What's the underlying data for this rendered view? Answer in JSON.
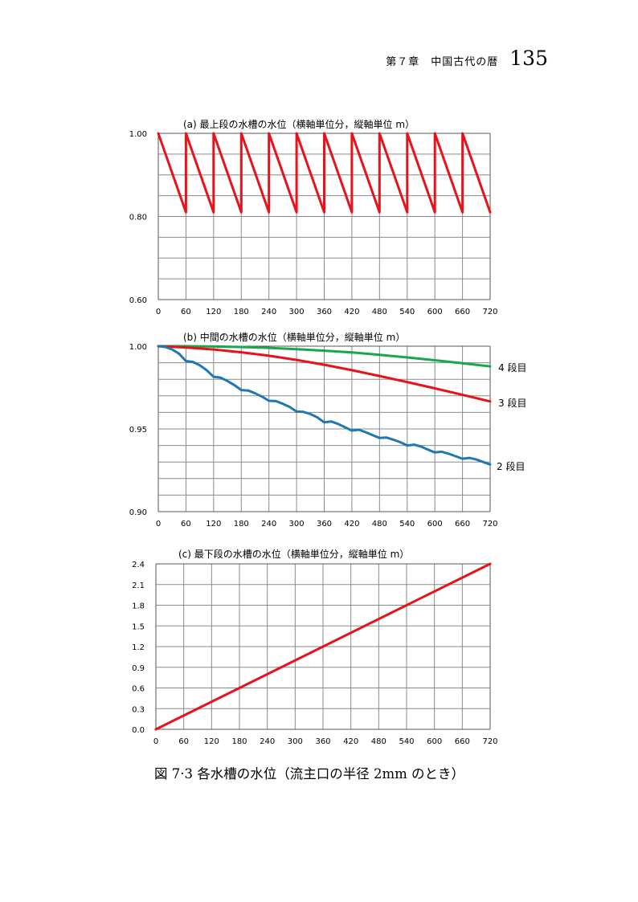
{
  "header": {
    "chapter": "第７章　中国古代の暦",
    "page_number": "135"
  },
  "figure_caption": "図 7·3  各水槽の水位（流主口の半径 2mm のとき）",
  "chart_data": [
    {
      "type": "line",
      "title": "(a)  最上段の水槽の水位（横軸単位分，縦軸単位 m）",
      "xlabel": "",
      "ylabel": "",
      "xlim": [
        0,
        720
      ],
      "ylim": [
        0.6,
        1.0
      ],
      "x_ticks": [
        "0",
        "60",
        "120",
        "180",
        "240",
        "300",
        "360",
        "420",
        "480",
        "540",
        "600",
        "660",
        "720"
      ],
      "y_ticks": [
        "1.00",
        "0.80",
        "0.60"
      ],
      "grid": true,
      "series": [
        {
          "color": "#e8121a",
          "x": [
            0,
            60,
            60,
            120,
            120,
            180,
            180,
            240,
            240,
            300,
            300,
            360,
            360,
            420,
            420,
            480,
            480,
            540,
            540,
            600,
            600,
            660,
            660,
            720
          ],
          "y": [
            1.0,
            0.81,
            1.0,
            0.81,
            1.0,
            0.81,
            1.0,
            0.81,
            1.0,
            0.81,
            1.0,
            0.81,
            1.0,
            0.81,
            1.0,
            0.81,
            1.0,
            0.81,
            1.0,
            0.81,
            1.0,
            0.81,
            1.0,
            0.81
          ]
        }
      ]
    },
    {
      "type": "line",
      "title": "(b)  中間の水槽の水位（横軸単位分，縦軸単位 m）",
      "xlabel": "",
      "ylabel": "",
      "xlim": [
        0,
        720
      ],
      "ylim": [
        0.9,
        1.0
      ],
      "x_ticks": [
        "0",
        "60",
        "120",
        "180",
        "240",
        "300",
        "360",
        "420",
        "480",
        "540",
        "600",
        "660",
        "720"
      ],
      "y_ticks": [
        "1.00",
        "0.95",
        "0.90"
      ],
      "grid": true,
      "series": [
        {
          "name": "4 段目",
          "color": "#1aa64b",
          "x": [
            0,
            60,
            120,
            180,
            240,
            300,
            360,
            420,
            480,
            540,
            600,
            660,
            720
          ],
          "y": [
            1.0,
            1.0,
            0.9998,
            0.9995,
            0.999,
            0.9982,
            0.9973,
            0.9962,
            0.9948,
            0.9932,
            0.9915,
            0.9897,
            0.9878
          ]
        },
        {
          "name": "3 段目",
          "color": "#e8121a",
          "x": [
            0,
            60,
            120,
            180,
            240,
            300,
            360,
            420,
            480,
            540,
            600,
            660,
            720
          ],
          "y": [
            1.0,
            0.9992,
            0.998,
            0.9963,
            0.9942,
            0.9917,
            0.9888,
            0.9855,
            0.982,
            0.9783,
            0.9745,
            0.9706,
            0.9666
          ]
        },
        {
          "name": "2 段目",
          "color": "#1f77b4",
          "x": [
            0,
            15,
            30,
            45,
            60,
            75,
            90,
            105,
            120,
            135,
            150,
            165,
            180,
            195,
            210,
            225,
            240,
            255,
            270,
            285,
            300,
            315,
            330,
            345,
            360,
            375,
            390,
            405,
            420,
            435,
            450,
            465,
            480,
            495,
            510,
            525,
            540,
            555,
            570,
            585,
            600,
            615,
            630,
            645,
            660,
            675,
            690,
            705,
            720
          ],
          "y": [
            1.0,
            0.9995,
            0.998,
            0.9955,
            0.991,
            0.9905,
            0.9885,
            0.9855,
            0.9815,
            0.981,
            0.979,
            0.9765,
            0.9735,
            0.9732,
            0.9715,
            0.9695,
            0.967,
            0.9668,
            0.9652,
            0.9633,
            0.9605,
            0.9603,
            0.959,
            0.957,
            0.954,
            0.9545,
            0.953,
            0.951,
            0.949,
            0.9495,
            0.948,
            0.9462,
            0.9445,
            0.9448,
            0.9435,
            0.942,
            0.94,
            0.9405,
            0.9393,
            0.9375,
            0.9358,
            0.9362,
            0.935,
            0.9335,
            0.932,
            0.9325,
            0.9315,
            0.93,
            0.9285
          ]
        }
      ]
    },
    {
      "type": "line",
      "title": "(c)  最下段の水槽の水位（横軸単位分，縦軸単位 m）",
      "xlabel": "",
      "ylabel": "",
      "xlim": [
        0,
        720
      ],
      "ylim": [
        0,
        2.4
      ],
      "x_ticks": [
        "0",
        "60",
        "120",
        "180",
        "240",
        "300",
        "360",
        "420",
        "480",
        "540",
        "600",
        "660",
        "720"
      ],
      "y_ticks": [
        "2.4",
        "2.1",
        "1.8",
        "1.5",
        "1.2",
        "0.9",
        "0.6",
        "0.3",
        "0.0"
      ],
      "grid": true,
      "series": [
        {
          "color": "#e8121a",
          "x": [
            0,
            720
          ],
          "y": [
            0.0,
            2.4
          ]
        }
      ]
    }
  ]
}
